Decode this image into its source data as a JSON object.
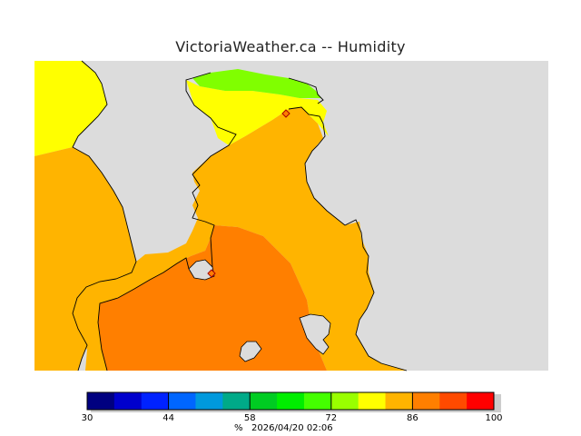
{
  "title": "VictoriaWeather.ca -- Humidity",
  "colors": {
    "land": "#dcdcdc",
    "coast": "#000000",
    "humidity_bands": [
      "#000080",
      "#0000cd",
      "#0022ff",
      "#0066ff",
      "#0099dd",
      "#00aa88",
      "#00cc22",
      "#00ee00",
      "#44ff00",
      "#99ff00",
      "#ffff00",
      "#ffb400",
      "#ff7f00",
      "#ff4a00",
      "#ff0000"
    ]
  },
  "legend": {
    "ticks": [
      "30",
      "44",
      "58",
      "72",
      "86",
      "100"
    ],
    "unit": "%",
    "timestamp": "2026/04/20 02:06"
  },
  "stations": [
    {
      "name": "north-station-marker"
    },
    {
      "name": "victoria-station-marker"
    }
  ]
}
